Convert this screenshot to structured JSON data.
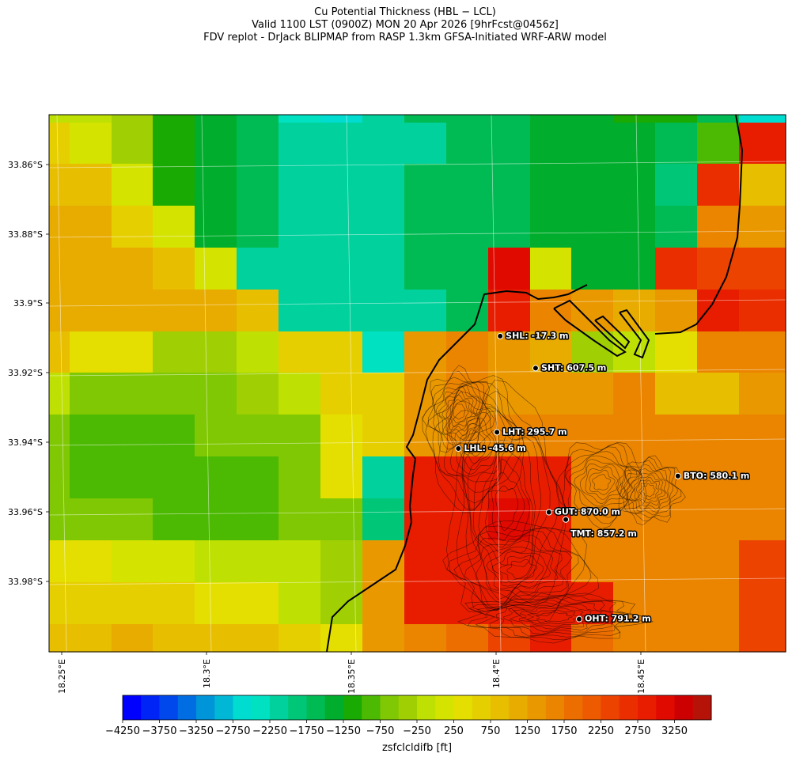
{
  "chart_data": {
    "type": "heatmap",
    "title": "Cu Potential Thickness (HBL − LCL)",
    "subtitle_1": "Valid 1100 LST (0900Z) MON 20 Apr 2026 [9hrFcst@0456z]",
    "subtitle_2": "FDV replot - DrJack BLIPMAP from RASP 1.3km GFSA-Initiated WRF-ARW model",
    "colorbar_label": "zsfclcldifb [ft]",
    "units": "ft",
    "x_ticks": [
      "18.25°E",
      "18.3°E",
      "18.35°E",
      "18.4°E",
      "18.45°E"
    ],
    "y_ticks": [
      "33.86°S",
      "33.88°S",
      "33.9°S",
      "33.92°S",
      "33.94°S",
      "33.96°S",
      "33.98°S"
    ],
    "colorbar_ticks": [
      "−4250",
      "−3750",
      "−3250",
      "−2750",
      "−2250",
      "−1750",
      "−1250",
      "−750",
      "−250",
      "250",
      "750",
      "1250",
      "1750",
      "2250",
      "2750",
      "3250"
    ],
    "colorbar_range": [
      -4250,
      3500
    ],
    "colorbar_step": 250,
    "colorbar_colors": [
      "#0000ff",
      "#0024f5",
      "#0048eb",
      "#006ee2",
      "#0094d9",
      "#00b8d5",
      "#00dcd0",
      "#00e1c1",
      "#00d19d",
      "#00c677",
      "#00bb53",
      "#00ad2c",
      "#19aa03",
      "#4cb903",
      "#7fc803",
      "#a0d003",
      "#bee003",
      "#d4e300",
      "#e4df00",
      "#e6cf00",
      "#e7be00",
      "#e8ab00",
      "#ea9800",
      "#eb8500",
      "#ed6e00",
      "#ed5a00",
      "#ec4300",
      "#ea2e00",
      "#e81d00",
      "#e00a00",
      "#cc0000",
      "#b51208"
    ],
    "grid_values": [
      [
        -250,
        -250,
        -500,
        -1250,
        -1500,
        -1750,
        -2500,
        -2750,
        -2250,
        -1750,
        -1750,
        -1750,
        -1500,
        -1500,
        -1250,
        -1250,
        -1750,
        -2750
      ],
      [
        500,
        0,
        -500,
        -1250,
        -1500,
        -1750,
        -2250,
        -2250,
        -2250,
        -2250,
        -1750,
        -1750,
        -1500,
        -1500,
        -1500,
        -1750,
        -1000,
        2750
      ],
      [
        750,
        750,
        0,
        -1250,
        -1500,
        -1750,
        -2250,
        -2250,
        -2250,
        -1750,
        -1750,
        -1750,
        -1500,
        -1500,
        -1500,
        -2000,
        2500,
        750
      ],
      [
        1000,
        1000,
        500,
        0,
        -1500,
        -1750,
        -2250,
        -2250,
        -2250,
        -1750,
        -1750,
        -1750,
        -1500,
        -1500,
        -1500,
        -1750,
        1500,
        1250
      ],
      [
        1000,
        1000,
        1000,
        750,
        0,
        -2250,
        -2250,
        -2250,
        -2250,
        -1750,
        -1750,
        3000,
        0,
        -1500,
        -1500,
        2500,
        2250,
        2250
      ],
      [
        1000,
        1000,
        1000,
        1000,
        1000,
        750,
        -2250,
        -2250,
        -2250,
        -2250,
        -1750,
        2750,
        1500,
        1250,
        1000,
        1250,
        2750,
        2500
      ],
      [
        750,
        250,
        250,
        -500,
        -500,
        -250,
        500,
        500,
        -2500,
        1250,
        1500,
        1250,
        1000,
        -500,
        -250,
        250,
        1500,
        1500
      ],
      [
        -250,
        -750,
        -750,
        -750,
        -750,
        -500,
        -250,
        500,
        500,
        1250,
        1500,
        1250,
        1250,
        1250,
        1500,
        750,
        750,
        1250
      ],
      [
        -750,
        -1000,
        -1000,
        -1000,
        -750,
        -750,
        -750,
        250,
        500,
        1250,
        1500,
        1500,
        1500,
        1500,
        1500,
        1500,
        1500,
        1500
      ],
      [
        -750,
        -1000,
        -1000,
        -1000,
        -1000,
        -1000,
        -750,
        250,
        -2250,
        2750,
        2750,
        2750,
        2750,
        1500,
        1500,
        1500,
        1500,
        1500
      ],
      [
        -750,
        -750,
        -750,
        -1000,
        -1000,
        -1000,
        -750,
        -750,
        -2000,
        2750,
        2750,
        3000,
        2750,
        1500,
        1500,
        1500,
        1500,
        1500
      ],
      [
        250,
        250,
        0,
        0,
        -250,
        -250,
        -250,
        -500,
        1250,
        2750,
        2750,
        2750,
        2750,
        1500,
        1500,
        1500,
        1500,
        2250
      ],
      [
        500,
        500,
        500,
        500,
        250,
        250,
        -250,
        -500,
        1250,
        2750,
        2750,
        2750,
        2750,
        2750,
        1500,
        1500,
        1500,
        2250
      ],
      [
        750,
        750,
        1000,
        750,
        750,
        750,
        500,
        250,
        1250,
        1500,
        1750,
        2250,
        2750,
        1750,
        1500,
        1500,
        1500,
        2250
      ]
    ],
    "stations": [
      {
        "label": "SHL: -17.3 m",
        "lon": 18.401,
        "lat": -33.9093
      },
      {
        "label": "SHT: 607.5 m",
        "lon": 18.4132,
        "lat": -33.9185
      },
      {
        "label": "LHT: 295.7 m",
        "lon": 18.3999,
        "lat": -33.9369
      },
      {
        "label": "LHL: -45.6 m",
        "lon": 18.3866,
        "lat": -33.9416
      },
      {
        "label": "BTO: 580.1 m",
        "lon": 18.4622,
        "lat": -33.9495
      },
      {
        "label": "GUT: 870.0 m",
        "lon": 18.4178,
        "lat": -33.9599
      },
      {
        "label": "TMT: 857.2 m",
        "lon": 18.4236,
        "lat": -33.962
      },
      {
        "label": "OHT: 791.2 m",
        "lon": 18.4282,
        "lat": -33.9906
      }
    ],
    "station_label_offsets": [
      "right",
      "right",
      "right",
      "right",
      "right",
      "right",
      "below-right",
      "right"
    ]
  }
}
